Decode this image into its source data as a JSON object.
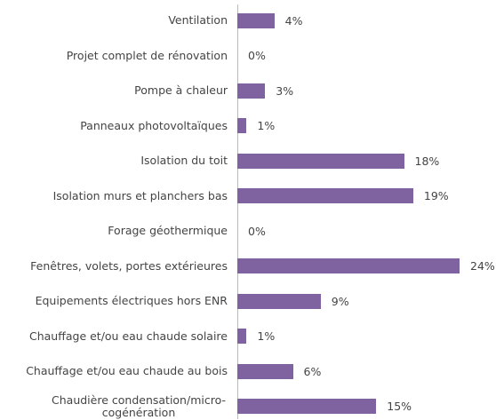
{
  "chart_data": {
    "type": "bar",
    "orientation": "horizontal",
    "categories": [
      "Ventilation",
      "Projet complet de rénovation",
      "Pompe à chaleur",
      "Panneaux photovoltaïques",
      "Isolation du toit",
      "Isolation murs et planchers bas",
      "Forage géothermique",
      "Fenêtres, volets, portes extérieures",
      "Equipements électriques hors ENR",
      "Chauffage et/ou eau chaude solaire",
      "Chauffage et/ou eau chaude au bois",
      "Chaudière condensation/micro-cogénération"
    ],
    "values": [
      4,
      0,
      3,
      1,
      18,
      19,
      0,
      24,
      9,
      1,
      6,
      15
    ],
    "value_labels": [
      "4%",
      "0%",
      "3%",
      "1%",
      "18%",
      "19%",
      "0%",
      "24%",
      "9%",
      "1%",
      "6%",
      "15%"
    ],
    "color": "#7f63a1"
  }
}
